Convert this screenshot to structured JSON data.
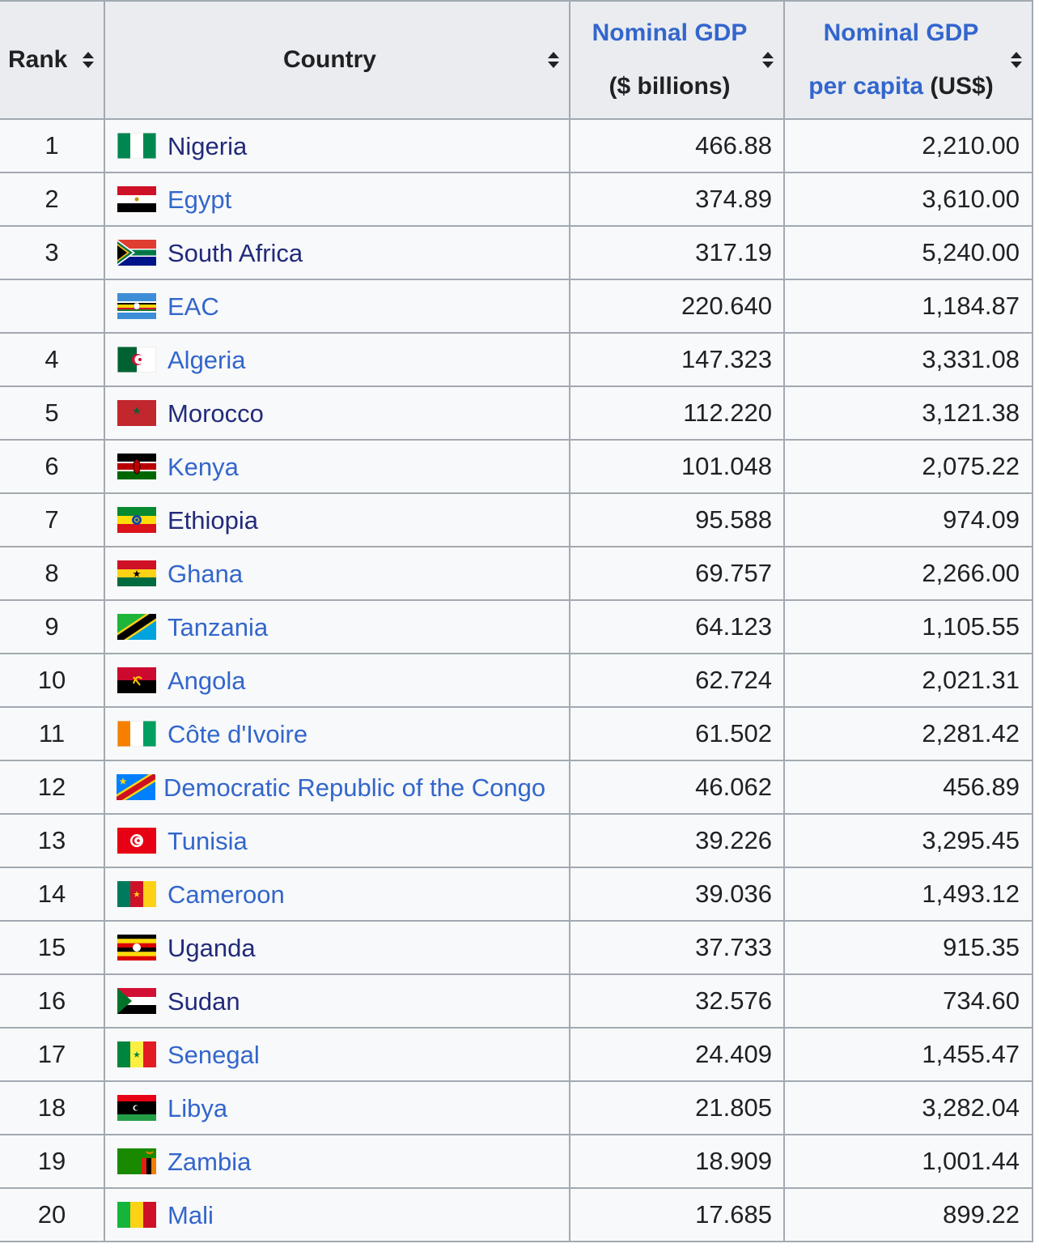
{
  "header": {
    "rank": "Rank",
    "country": "Country",
    "gdp_line1": "Nominal GDP",
    "gdp_line2": "($ billions)",
    "pc_line1": "Nominal GDP",
    "pc_line2_link": "per capita",
    "pc_line2_unit": "(US$)"
  },
  "icons": {
    "sort": "sort-toggle-icon"
  },
  "colors": {
    "link": "#3366cc",
    "visited_link": "#222a7a",
    "header_bg": "#eaecf0",
    "border": "#a2a9b1"
  },
  "rows": [
    {
      "rank": "1",
      "country": "Nigeria",
      "gdp": "466.88",
      "per_capita": "2,210.00",
      "flag": "nigeria-flag-icon"
    },
    {
      "rank": "2",
      "country": "Egypt",
      "gdp": "374.89",
      "per_capita": "3,610.00",
      "flag": "egypt-flag-icon"
    },
    {
      "rank": "3",
      "country": "South Africa",
      "gdp": "317.19",
      "per_capita": "5,240.00",
      "flag": "south-africa-flag-icon"
    },
    {
      "rank": "",
      "country": "EAC",
      "gdp": "220.640",
      "per_capita": "1,184.87",
      "flag": "eac-flag-icon"
    },
    {
      "rank": "4",
      "country": "Algeria",
      "gdp": "147.323",
      "per_capita": "3,331.08",
      "flag": "algeria-flag-icon"
    },
    {
      "rank": "5",
      "country": "Morocco",
      "gdp": "112.220",
      "per_capita": "3,121.38",
      "flag": "morocco-flag-icon"
    },
    {
      "rank": "6",
      "country": "Kenya",
      "gdp": "101.048",
      "per_capita": "2,075.22",
      "flag": "kenya-flag-icon"
    },
    {
      "rank": "7",
      "country": "Ethiopia",
      "gdp": "95.588",
      "per_capita": "974.09",
      "flag": "ethiopia-flag-icon"
    },
    {
      "rank": "8",
      "country": "Ghana",
      "gdp": "69.757",
      "per_capita": "2,266.00",
      "flag": "ghana-flag-icon"
    },
    {
      "rank": "9",
      "country": "Tanzania",
      "gdp": "64.123",
      "per_capita": "1,105.55",
      "flag": "tanzania-flag-icon"
    },
    {
      "rank": "10",
      "country": "Angola",
      "gdp": "62.724",
      "per_capita": "2,021.31",
      "flag": "angola-flag-icon"
    },
    {
      "rank": "11",
      "country": "Côte d'Ivoire",
      "gdp": "61.502",
      "per_capita": "2,281.42",
      "flag": "cote-divoire-flag-icon"
    },
    {
      "rank": "12",
      "country": "Democratic Republic of the Congo",
      "gdp": "46.062",
      "per_capita": "456.89",
      "flag": "dr-congo-flag-icon"
    },
    {
      "rank": "13",
      "country": "Tunisia",
      "gdp": "39.226",
      "per_capita": "3,295.45",
      "flag": "tunisia-flag-icon"
    },
    {
      "rank": "14",
      "country": "Cameroon",
      "gdp": "39.036",
      "per_capita": "1,493.12",
      "flag": "cameroon-flag-icon"
    },
    {
      "rank": "15",
      "country": "Uganda",
      "gdp": "37.733",
      "per_capita": "915.35",
      "flag": "uganda-flag-icon"
    },
    {
      "rank": "16",
      "country": "Sudan",
      "gdp": "32.576",
      "per_capita": "734.60",
      "flag": "sudan-flag-icon"
    },
    {
      "rank": "17",
      "country": "Senegal",
      "gdp": "24.409",
      "per_capita": "1,455.47",
      "flag": "senegal-flag-icon"
    },
    {
      "rank": "18",
      "country": "Libya",
      "gdp": "21.805",
      "per_capita": "3,282.04",
      "flag": "libya-flag-icon"
    },
    {
      "rank": "19",
      "country": "Zambia",
      "gdp": "18.909",
      "per_capita": "1,001.44",
      "flag": "zambia-flag-icon"
    },
    {
      "rank": "20",
      "country": "Mali",
      "gdp": "17.685",
      "per_capita": "899.22",
      "flag": "mali-flag-icon"
    }
  ]
}
